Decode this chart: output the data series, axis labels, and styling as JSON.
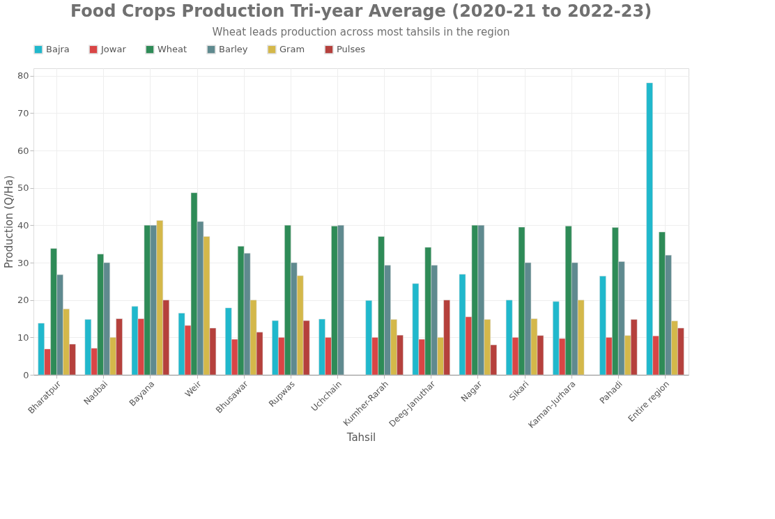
{
  "chart_data": {
    "type": "bar",
    "title": "Food Crops Production Tri-year Average (2020-21 to 2022-23)",
    "subtitle": "Wheat leads production across most tahsils in the region",
    "xlabel": "Tahsil",
    "ylabel": "Production (Q/Ha)",
    "categories": [
      "Bharatpur",
      "Nadbai",
      "Bayana",
      "Weir",
      "Bhusawar",
      "Rupwas",
      "Uchchain",
      "Kumher-Rarah",
      "Deeg-Januthar",
      "Nagar",
      "Sikari",
      "Kaman-Jurhara",
      "Pahadi",
      "Entire region"
    ],
    "series": [
      {
        "name": "Bajra",
        "color": "#20b8cc",
        "values": [
          13.8,
          14.8,
          18.3,
          16.5,
          17.9,
          14.5,
          14.9,
          19.9,
          24.4,
          26.9,
          20,
          19.6,
          26.4,
          78.1
        ]
      },
      {
        "name": "Jowar",
        "color": "#d94545",
        "values": [
          6.9,
          7.1,
          15,
          13.2,
          9.5,
          10,
          10,
          10,
          9.5,
          15.5,
          10,
          9.7,
          10,
          10.4
        ]
      },
      {
        "name": "Wheat",
        "color": "#2e8b57",
        "values": [
          33.8,
          32.3,
          40,
          48.7,
          34.4,
          40,
          39.8,
          37,
          34.1,
          40,
          39.5,
          39.8,
          39.4,
          38.2
        ]
      },
      {
        "name": "Barley",
        "color": "#5f8a8f",
        "values": [
          26.8,
          30,
          40,
          41,
          32.5,
          30,
          40,
          29.3,
          29.3,
          40,
          30,
          30,
          30.3,
          32
        ]
      },
      {
        "name": "Gram",
        "color": "#d4b84a",
        "values": [
          17.6,
          10,
          41.3,
          37,
          20,
          26.5,
          null,
          14.8,
          10,
          14.8,
          15,
          20,
          10.5,
          14.4
        ]
      },
      {
        "name": "Pulses",
        "color": "#b5403c",
        "values": [
          8.2,
          15,
          20,
          12.5,
          11.4,
          14.5,
          null,
          10.6,
          20,
          8,
          10.5,
          null,
          14.8,
          12.5
        ]
      }
    ],
    "ylim": [
      0,
      82
    ],
    "yticks": [
      0,
      10,
      20,
      30,
      40,
      50,
      60,
      70,
      80
    ],
    "grid": true,
    "legend": "top"
  }
}
